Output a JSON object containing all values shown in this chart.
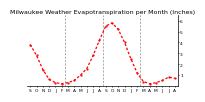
{
  "title": "Milwaukee Weather Evapotranspiration per Month (Inches)",
  "background_color": "#ffffff",
  "line_color": "#ff0000",
  "grid_color": "#888888",
  "ylim": [
    0,
    6.5
  ],
  "yticks": [
    1,
    2,
    3,
    4,
    5,
    6
  ],
  "ytick_labels": [
    "1",
    "2",
    "3",
    "4",
    "5",
    "6"
  ],
  "values": [
    3.8,
    2.8,
    1.5,
    0.6,
    0.3,
    0.2,
    0.3,
    0.5,
    1.0,
    1.6,
    2.8,
    4.2,
    5.5,
    5.8,
    5.2,
    4.0,
    2.5,
    1.2,
    0.4,
    0.2,
    0.3,
    0.5,
    0.8,
    0.7
  ],
  "title_fontsize": 4.5,
  "tick_fontsize": 3.2,
  "line_width": 0.9,
  "marker_size": 1.2,
  "vline_positions": [
    5.5,
    11.5,
    17.5
  ],
  "num_months": 24
}
